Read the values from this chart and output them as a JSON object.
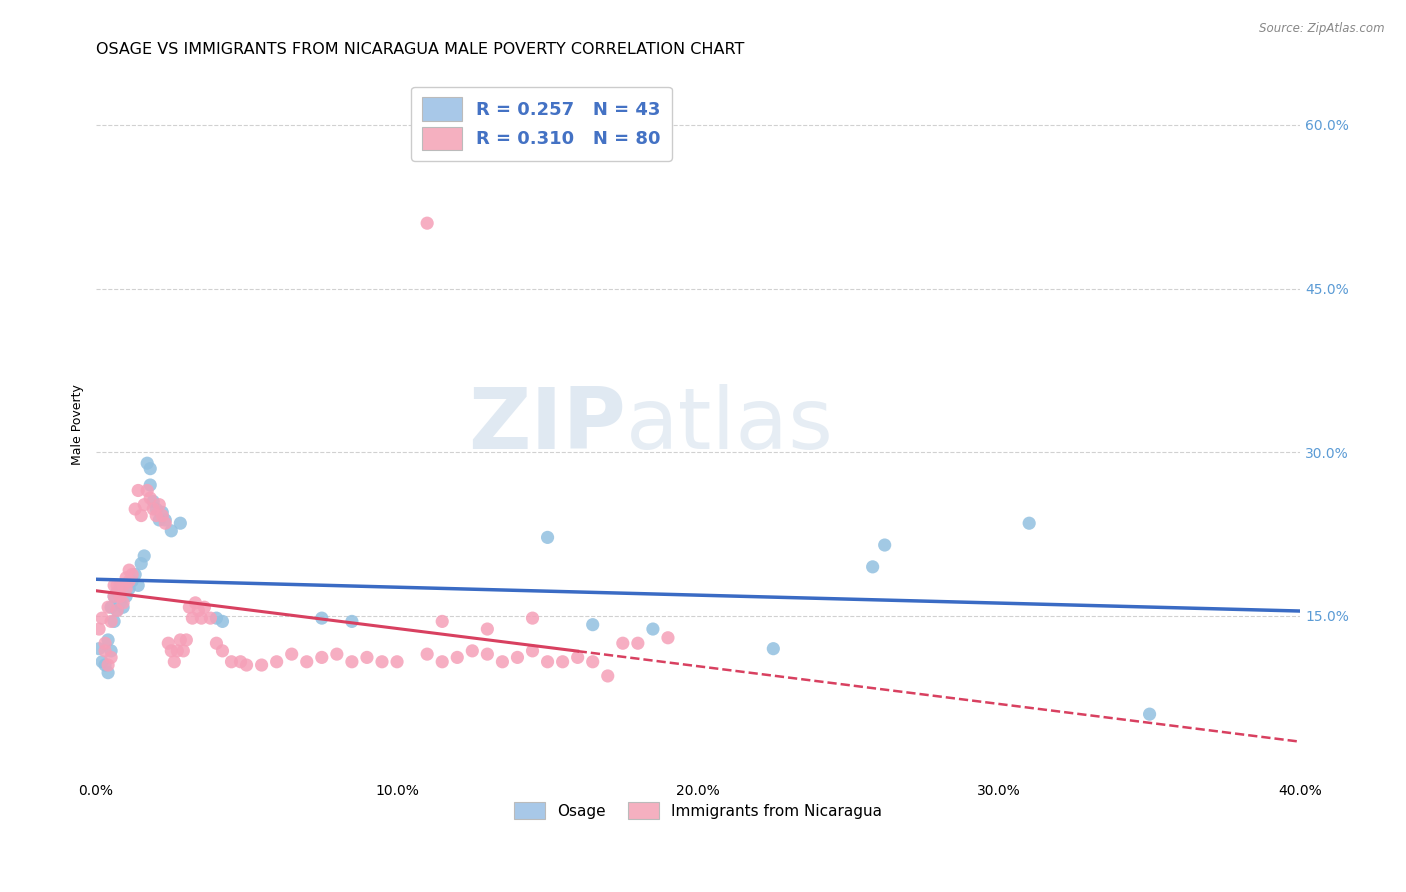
{
  "title": "OSAGE VS IMMIGRANTS FROM NICARAGUA MALE POVERTY CORRELATION CHART",
  "source": "Source: ZipAtlas.com",
  "ylabel": "Male Poverty",
  "xlim": [
    0.0,
    0.4
  ],
  "ylim": [
    0.0,
    0.65
  ],
  "xtick_vals": [
    0.0,
    0.1,
    0.2,
    0.3,
    0.4
  ],
  "xtick_labels": [
    "0.0%",
    "10.0%",
    "20.0%",
    "30.0%",
    "40.0%"
  ],
  "ytick_vals": [
    0.15,
    0.3,
    0.45,
    0.6
  ],
  "ytick_labels": [
    "15.0%",
    "30.0%",
    "45.0%",
    "60.0%"
  ],
  "watermark_zip": "ZIP",
  "watermark_atlas": "atlas",
  "osage_color": "#92c0e0",
  "nicaragua_color": "#f5a0b8",
  "osage_line_color": "#3a6bc4",
  "nicaragua_line_color": "#d84060",
  "background_color": "#ffffff",
  "grid_color": "#cccccc",
  "title_fontsize": 11.5,
  "source_fontsize": 8.5,
  "axis_label_fontsize": 9,
  "tick_fontsize": 10,
  "right_tick_color": "#5b9bd5",
  "legend_osage_color": "#a8c8e8",
  "legend_nic_color": "#f5b0c0",
  "legend_text_color": "#4472c4",
  "osage_scatter": [
    [
      0.001,
      0.12
    ],
    [
      0.002,
      0.108
    ],
    [
      0.003,
      0.105
    ],
    [
      0.004,
      0.098
    ],
    [
      0.004,
      0.128
    ],
    [
      0.005,
      0.118
    ],
    [
      0.005,
      0.158
    ],
    [
      0.006,
      0.145
    ],
    [
      0.006,
      0.168
    ],
    [
      0.007,
      0.155
    ],
    [
      0.007,
      0.172
    ],
    [
      0.008,
      0.162
    ],
    [
      0.008,
      0.178
    ],
    [
      0.009,
      0.158
    ],
    [
      0.01,
      0.168
    ],
    [
      0.011,
      0.175
    ],
    [
      0.012,
      0.182
    ],
    [
      0.013,
      0.188
    ],
    [
      0.014,
      0.178
    ],
    [
      0.015,
      0.198
    ],
    [
      0.016,
      0.205
    ],
    [
      0.017,
      0.29
    ],
    [
      0.018,
      0.285
    ],
    [
      0.018,
      0.27
    ],
    [
      0.019,
      0.255
    ],
    [
      0.02,
      0.248
    ],
    [
      0.021,
      0.238
    ],
    [
      0.022,
      0.245
    ],
    [
      0.023,
      0.238
    ],
    [
      0.025,
      0.228
    ],
    [
      0.028,
      0.235
    ],
    [
      0.04,
      0.148
    ],
    [
      0.042,
      0.145
    ],
    [
      0.075,
      0.148
    ],
    [
      0.085,
      0.145
    ],
    [
      0.15,
      0.222
    ],
    [
      0.165,
      0.142
    ],
    [
      0.185,
      0.138
    ],
    [
      0.225,
      0.12
    ],
    [
      0.258,
      0.195
    ],
    [
      0.262,
      0.215
    ],
    [
      0.31,
      0.235
    ],
    [
      0.35,
      0.06
    ]
  ],
  "nicaragua_scatter": [
    [
      0.001,
      0.138
    ],
    [
      0.002,
      0.148
    ],
    [
      0.003,
      0.118
    ],
    [
      0.003,
      0.125
    ],
    [
      0.004,
      0.105
    ],
    [
      0.004,
      0.158
    ],
    [
      0.005,
      0.112
    ],
    [
      0.005,
      0.145
    ],
    [
      0.006,
      0.168
    ],
    [
      0.006,
      0.178
    ],
    [
      0.007,
      0.155
    ],
    [
      0.007,
      0.178
    ],
    [
      0.008,
      0.168
    ],
    [
      0.009,
      0.162
    ],
    [
      0.009,
      0.178
    ],
    [
      0.01,
      0.175
    ],
    [
      0.01,
      0.185
    ],
    [
      0.011,
      0.182
    ],
    [
      0.011,
      0.192
    ],
    [
      0.012,
      0.188
    ],
    [
      0.013,
      0.248
    ],
    [
      0.014,
      0.265
    ],
    [
      0.015,
      0.242
    ],
    [
      0.016,
      0.252
    ],
    [
      0.017,
      0.265
    ],
    [
      0.018,
      0.258
    ],
    [
      0.019,
      0.248
    ],
    [
      0.02,
      0.242
    ],
    [
      0.021,
      0.252
    ],
    [
      0.022,
      0.242
    ],
    [
      0.023,
      0.235
    ],
    [
      0.024,
      0.125
    ],
    [
      0.025,
      0.118
    ],
    [
      0.026,
      0.108
    ],
    [
      0.027,
      0.118
    ],
    [
      0.028,
      0.128
    ],
    [
      0.029,
      0.118
    ],
    [
      0.03,
      0.128
    ],
    [
      0.031,
      0.158
    ],
    [
      0.032,
      0.148
    ],
    [
      0.033,
      0.162
    ],
    [
      0.034,
      0.155
    ],
    [
      0.035,
      0.148
    ],
    [
      0.036,
      0.158
    ],
    [
      0.038,
      0.148
    ],
    [
      0.04,
      0.125
    ],
    [
      0.042,
      0.118
    ],
    [
      0.045,
      0.108
    ],
    [
      0.048,
      0.108
    ],
    [
      0.05,
      0.105
    ],
    [
      0.055,
      0.105
    ],
    [
      0.06,
      0.108
    ],
    [
      0.065,
      0.115
    ],
    [
      0.07,
      0.108
    ],
    [
      0.075,
      0.112
    ],
    [
      0.08,
      0.115
    ],
    [
      0.085,
      0.108
    ],
    [
      0.09,
      0.112
    ],
    [
      0.095,
      0.108
    ],
    [
      0.1,
      0.108
    ],
    [
      0.11,
      0.115
    ],
    [
      0.115,
      0.108
    ],
    [
      0.12,
      0.112
    ],
    [
      0.125,
      0.118
    ],
    [
      0.13,
      0.115
    ],
    [
      0.135,
      0.108
    ],
    [
      0.14,
      0.112
    ],
    [
      0.145,
      0.118
    ],
    [
      0.15,
      0.108
    ],
    [
      0.155,
      0.108
    ],
    [
      0.16,
      0.112
    ],
    [
      0.165,
      0.108
    ],
    [
      0.17,
      0.095
    ],
    [
      0.175,
      0.125
    ],
    [
      0.18,
      0.125
    ],
    [
      0.19,
      0.13
    ],
    [
      0.11,
      0.51
    ],
    [
      0.115,
      0.145
    ],
    [
      0.13,
      0.138
    ],
    [
      0.145,
      0.148
    ]
  ]
}
